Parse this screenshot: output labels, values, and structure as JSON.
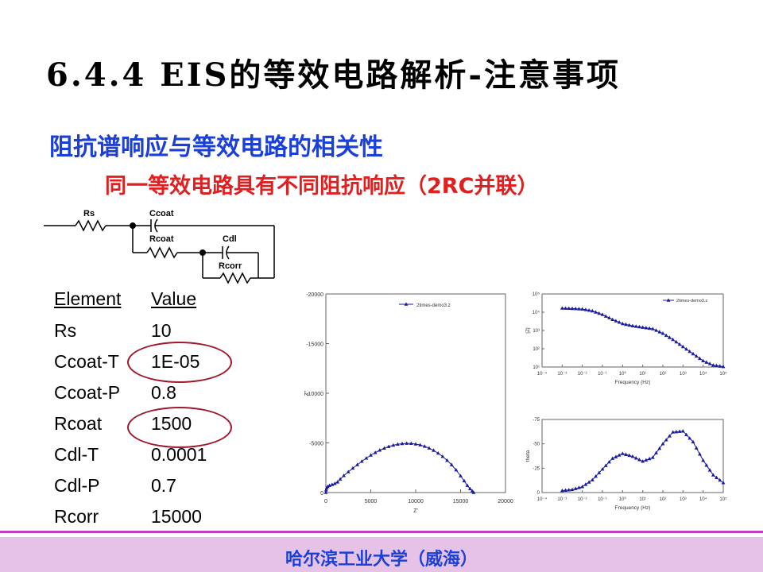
{
  "slide": {
    "title": "6.4.4 EIS的等效电路解析-注意事项",
    "subtitle1": "阻抗谱响应与等效电路的相关性",
    "subtitle2": "同一等效电路具有不同阻抗响应（2RC并联）",
    "footer": "哈尔滨工业大学（威海）"
  },
  "circuit": {
    "labels": [
      "Rs",
      "Ccoat",
      "Rcoat",
      "Cdl",
      "Rcorr"
    ]
  },
  "parameters": {
    "header_element": "Element",
    "header_value": "Value",
    "rows": [
      {
        "name": "Rs",
        "value": "10"
      },
      {
        "name": "Ccoat-T",
        "value": "1E-05",
        "highlighted": true
      },
      {
        "name": "Ccoat-P",
        "value": "0.8"
      },
      {
        "name": "Rcoat",
        "value": "1500",
        "highlighted": true
      },
      {
        "name": "Cdl-T",
        "value": "0.0001"
      },
      {
        "name": "Cdl-P",
        "value": "0.7"
      },
      {
        "name": "Rcorr",
        "value": "15000"
      }
    ]
  },
  "colors": {
    "title": "#000000",
    "subtitle1": "#1b3fd9",
    "subtitle2": "#e02020",
    "highlight_ring": "#a0182b",
    "series": "#1a1aa0",
    "footer_bg": "#e6c3e6",
    "footer_line": "#c040c0",
    "footer_text": "#1b3fd9"
  },
  "chart_data": [
    {
      "type": "scatter",
      "legend": "2times-demo3.z",
      "legend_position": "top",
      "xlabel": "Z'",
      "ylabel": "Z''",
      "xlim": [
        0,
        20000
      ],
      "ylim": [
        0,
        -20000
      ],
      "xticks": [
        "0",
        "5000",
        "10000",
        "15000",
        "20000"
      ],
      "yticks": [
        "0",
        "-5000",
        "-10000",
        "-15000",
        "-20000"
      ],
      "grid": false,
      "x": [
        0,
        30,
        90,
        200,
        400,
        700,
        1000,
        1300,
        1600,
        2000,
        2500,
        3000,
        3500,
        4000,
        4500,
        5000,
        5500,
        6000,
        6500,
        7000,
        7500,
        8000,
        8500,
        9000,
        9500,
        10000,
        10500,
        11000,
        11500,
        12000,
        12500,
        13000,
        13500,
        14000,
        14500,
        15000,
        15400,
        15750,
        16050,
        16300,
        16450
      ],
      "y": [
        0,
        -250,
        -450,
        -600,
        -700,
        -800,
        -900,
        -1050,
        -1350,
        -1700,
        -2080,
        -2450,
        -2800,
        -3140,
        -3460,
        -3760,
        -4020,
        -4260,
        -4460,
        -4630,
        -4760,
        -4860,
        -4920,
        -4950,
        -4940,
        -4880,
        -4790,
        -4650,
        -4470,
        -4240,
        -3960,
        -3630,
        -3240,
        -2790,
        -2270,
        -1670,
        -1170,
        -710,
        -380,
        -150,
        0
      ]
    },
    {
      "type": "line",
      "legend": "2times-demo3.z",
      "legend_position": "top-right",
      "xlabel": "Frequency (Hz)",
      "ylabel": "|Z|",
      "xscale": "log",
      "yscale": "log",
      "xlim": [
        0.0001,
        100000
      ],
      "ylim": [
        10,
        100000
      ],
      "xticks": [
        "10⁻⁴",
        "10⁻³",
        "10⁻²",
        "10⁻¹",
        "10⁰",
        "10¹",
        "10²",
        "10³",
        "10⁴",
        "10⁵"
      ],
      "yticks": [
        "10¹",
        "10²",
        "10³",
        "10⁴",
        "10⁵"
      ],
      "x_log10": [
        -3,
        -2.5,
        -2,
        -1.5,
        -1,
        -0.5,
        0,
        0.5,
        1,
        1.5,
        2,
        2.5,
        3,
        3.5,
        4,
        4.5,
        5
      ],
      "log10_y": [
        4.22,
        4.2,
        4.17,
        4.07,
        3.87,
        3.6,
        3.37,
        3.25,
        3.17,
        3.09,
        2.84,
        2.5,
        2.11,
        1.72,
        1.34,
        1.1,
        1.02
      ]
    },
    {
      "type": "line",
      "xlabel": "Frequency (Hz)",
      "ylabel": "theta",
      "xscale": "log",
      "xlim": [
        0.0001,
        100000
      ],
      "ylim": [
        0,
        -75
      ],
      "xticks": [
        "10⁻⁴",
        "10⁻³",
        "10⁻²",
        "10⁻¹",
        "10⁰",
        "10¹",
        "10²",
        "10³",
        "10⁴",
        "10⁵"
      ],
      "yticks": [
        "0",
        "-25",
        "-50",
        "-75"
      ],
      "x_log10": [
        -3,
        -2.5,
        -2,
        -1.5,
        -1,
        -0.5,
        0,
        0.5,
        1,
        1.5,
        2,
        2.5,
        3,
        3.5,
        4,
        4.5,
        5
      ],
      "y": [
        -2,
        -3,
        -6,
        -13,
        -24,
        -35,
        -40,
        -37,
        -32,
        -36,
        -50,
        -62,
        -63,
        -52,
        -33,
        -18,
        -10
      ]
    }
  ]
}
